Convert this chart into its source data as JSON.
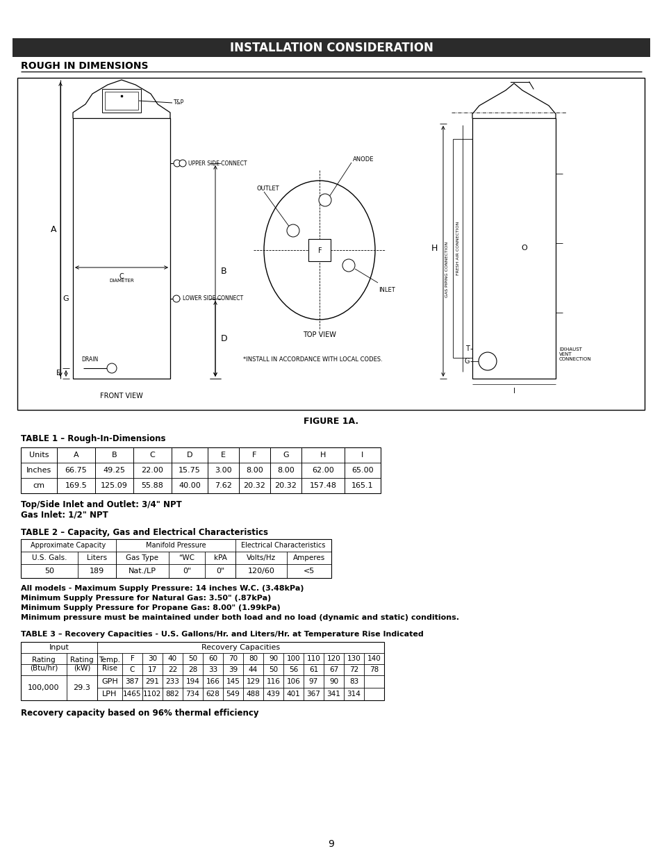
{
  "title": "INSTALLATION CONSIDERATION",
  "title_bg": "#2b2b2b",
  "title_color": "#ffffff",
  "section_title": "ROUGH IN DIMENSIONS",
  "figure_caption": "FIGURE 1A.",
  "table1_title": "TABLE 1 – Rough-In-Dimensions",
  "table1_headers": [
    "Units",
    "A",
    "B",
    "C",
    "D",
    "E",
    "F",
    "G",
    "H",
    "I"
  ],
  "table1_rows": [
    [
      "Inches",
      "66.75",
      "49.25",
      "22.00",
      "15.75",
      "3.00",
      "8.00",
      "8.00",
      "62.00",
      "65.00"
    ],
    [
      "cm",
      "169.5",
      "125.09",
      "55.88",
      "40.00",
      "7.62",
      "20.32",
      "20.32",
      "157.48",
      "165.1"
    ]
  ],
  "note1_lines": [
    "Top/Side Inlet and Outlet: 3/4\" NPT",
    "Gas Inlet: 1/2\" NPT"
  ],
  "table2_title": "TABLE 2 – Capacity, Gas and Electrical Characteristics",
  "table2_group_labels": [
    "Approximate Capacity",
    "Manifold Pressure",
    "Electrical Characteristics"
  ],
  "table2_group_spans": [
    2,
    3,
    2
  ],
  "table2_subheaders": [
    "U.S. Gals.",
    "Liters",
    "Gas Type",
    "“WC",
    "kPA",
    "Volts/Hz",
    "Amperes"
  ],
  "table2_data": [
    "50",
    "189",
    "Nat./LP",
    "0\"",
    "0\"",
    "120/60",
    "<5"
  ],
  "note2_lines": [
    "All models - Maximum Supply Pressure: 14 inches W.C. (3.48kPa)",
    "Minimum Supply Pressure for Natural Gas: 3.50\" (.87kPa)",
    "Minimum Supply Pressure for Propane Gas: 8.00\" (1.99kPa)",
    "Minimum pressure must be maintained under both load and no load (dynamic and static) conditions."
  ],
  "table3_title": "TABLE 3 – Recovery Capacities - U.S. Gallons/Hr. and Liters/Hr. at Temperature Rise Indicated",
  "table3_temp_F": [
    "F",
    "30",
    "40",
    "50",
    "60",
    "70",
    "80",
    "90",
    "100",
    "110",
    "120",
    "130",
    "140"
  ],
  "table3_temp_C": [
    "C",
    "17",
    "22",
    "28",
    "33",
    "39",
    "44",
    "50",
    "56",
    "61",
    "67",
    "72",
    "78"
  ],
  "table3_gph": [
    "GPH",
    "387",
    "291",
    "233",
    "194",
    "166",
    "145",
    "129",
    "116",
    "106",
    "97",
    "90",
    "83"
  ],
  "table3_lph": [
    "LPH",
    "1465",
    "1102",
    "882",
    "734",
    "628",
    "549",
    "488",
    "439",
    "401",
    "367",
    "341",
    "314"
  ],
  "table3_input_btu": "100,000",
  "table3_input_kw": "29.3",
  "note3": "Recovery capacity based on 96% thermal efficiency",
  "page_number": "9"
}
